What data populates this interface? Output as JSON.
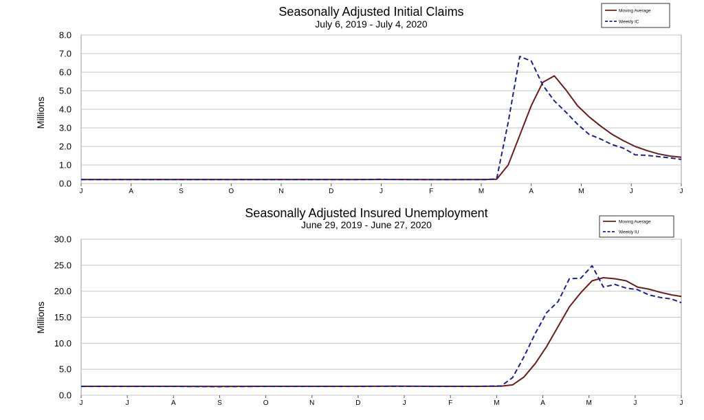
{
  "chart_data": [
    {
      "type": "line",
      "title": "Seasonally Adjusted Initial Claims",
      "subtitle": "July 6, 2019 - July 4, 2020",
      "xlabel": "",
      "ylabel": "Millions",
      "ylim": [
        0,
        8
      ],
      "yticks": [
        "0.0",
        "1.0",
        "2.0",
        "3.0",
        "4.0",
        "5.0",
        "6.0",
        "7.0",
        "8.0"
      ],
      "x_tick_labels": [
        "J",
        "A",
        "S",
        "O",
        "N",
        "D",
        "J",
        "F",
        "M",
        "A",
        "M",
        "J",
        "J"
      ],
      "x_start": "2019-07-06",
      "x_end": "2020-07-04",
      "grid": true,
      "legend_position": "top-right",
      "series": [
        {
          "name": "Moving Average",
          "color": "#6b1a1a",
          "dash": "solid",
          "x": [
            "2019-07-06",
            "2019-08-03",
            "2019-08-31",
            "2019-09-28",
            "2019-10-26",
            "2019-11-23",
            "2019-12-21",
            "2020-01-18",
            "2020-02-15",
            "2020-03-07",
            "2020-03-14",
            "2020-03-21",
            "2020-03-28",
            "2020-04-04",
            "2020-04-11",
            "2020-04-18",
            "2020-04-25",
            "2020-05-02",
            "2020-05-09",
            "2020-05-16",
            "2020-05-23",
            "2020-05-30",
            "2020-06-06",
            "2020-06-13",
            "2020-06-20",
            "2020-06-27",
            "2020-07-04"
          ],
          "values": [
            0.22,
            0.22,
            0.22,
            0.22,
            0.22,
            0.22,
            0.22,
            0.22,
            0.21,
            0.22,
            0.23,
            1.0,
            2.6,
            4.2,
            5.45,
            5.8,
            5.05,
            4.2,
            3.6,
            3.1,
            2.65,
            2.3,
            2.0,
            1.78,
            1.6,
            1.48,
            1.42
          ]
        },
        {
          "name": "Weekly IC",
          "color": "#1a1f8c",
          "dash": "dashed",
          "x": [
            "2019-07-06",
            "2019-08-03",
            "2019-08-31",
            "2019-09-28",
            "2019-10-26",
            "2019-11-23",
            "2019-12-21",
            "2020-01-04",
            "2020-01-18",
            "2020-02-15",
            "2020-03-07",
            "2020-03-14",
            "2020-03-21",
            "2020-03-28",
            "2020-04-04",
            "2020-04-11",
            "2020-04-18",
            "2020-04-25",
            "2020-05-02",
            "2020-05-09",
            "2020-05-16",
            "2020-05-23",
            "2020-05-30",
            "2020-06-06",
            "2020-06-13",
            "2020-06-20",
            "2020-06-27",
            "2020-07-04"
          ],
          "values": [
            0.21,
            0.21,
            0.21,
            0.21,
            0.21,
            0.21,
            0.21,
            0.23,
            0.21,
            0.21,
            0.21,
            0.25,
            3.3,
            6.85,
            6.6,
            5.3,
            4.45,
            3.85,
            3.2,
            2.65,
            2.4,
            2.1,
            1.9,
            1.55,
            1.52,
            1.45,
            1.38,
            1.3
          ]
        }
      ]
    },
    {
      "type": "line",
      "title": "Seasonally Adjusted Insured Unemployment",
      "subtitle": "June 29, 2019 - June 27, 2020",
      "xlabel": "",
      "ylabel": "Millions",
      "ylim": [
        0,
        30
      ],
      "yticks": [
        "0.0",
        "5.0",
        "10.0",
        "15.0",
        "20.0",
        "25.0",
        "30.0"
      ],
      "x_tick_labels": [
        "J",
        "J",
        "A",
        "S",
        "O",
        "N",
        "D",
        "J",
        "F",
        "M",
        "A",
        "M",
        "J",
        "J"
      ],
      "x_start": "2019-06-29",
      "x_end": "2020-07-03",
      "grid": true,
      "legend_position": "top-right",
      "series": [
        {
          "name": "Moving Average",
          "color": "#6b1a1a",
          "dash": "solid",
          "x": [
            "2019-06-29",
            "2019-07-27",
            "2019-08-24",
            "2019-09-21",
            "2019-10-19",
            "2019-11-16",
            "2019-12-14",
            "2020-01-11",
            "2020-02-08",
            "2020-02-29",
            "2020-03-14",
            "2020-03-21",
            "2020-03-28",
            "2020-04-04",
            "2020-04-11",
            "2020-04-18",
            "2020-04-25",
            "2020-05-02",
            "2020-05-09",
            "2020-05-16",
            "2020-05-23",
            "2020-05-30",
            "2020-06-06",
            "2020-06-13",
            "2020-06-20",
            "2020-06-27",
            "2020-07-03"
          ],
          "values": [
            1.72,
            1.72,
            1.72,
            1.7,
            1.72,
            1.72,
            1.72,
            1.75,
            1.72,
            1.72,
            1.75,
            2.0,
            3.5,
            6.1,
            9.4,
            13.2,
            17.0,
            19.7,
            22.0,
            22.6,
            22.4,
            22.0,
            20.8,
            20.4,
            19.8,
            19.3,
            19.0
          ]
        },
        {
          "name": "Weekly IU",
          "color": "#1a1f8c",
          "dash": "dashed",
          "x": [
            "2019-06-29",
            "2019-07-27",
            "2019-08-24",
            "2019-09-21",
            "2019-10-19",
            "2019-11-16",
            "2019-12-14",
            "2020-01-11",
            "2020-02-08",
            "2020-02-29",
            "2020-03-14",
            "2020-03-21",
            "2020-03-28",
            "2020-04-04",
            "2020-04-11",
            "2020-04-18",
            "2020-04-25",
            "2020-05-02",
            "2020-05-09",
            "2020-05-16",
            "2020-05-23",
            "2020-05-30",
            "2020-06-06",
            "2020-06-13",
            "2020-06-20",
            "2020-06-27",
            "2020-07-03"
          ],
          "values": [
            1.7,
            1.7,
            1.7,
            1.65,
            1.7,
            1.7,
            1.7,
            1.72,
            1.7,
            1.7,
            1.8,
            3.4,
            7.4,
            11.9,
            15.9,
            18.0,
            22.4,
            22.5,
            24.9,
            20.8,
            21.3,
            20.6,
            20.3,
            19.3,
            18.8,
            18.5,
            17.8
          ]
        }
      ]
    }
  ]
}
